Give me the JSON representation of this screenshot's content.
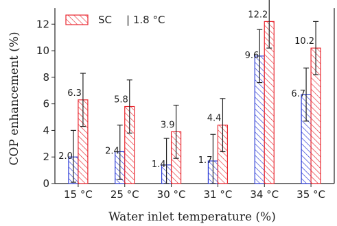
{
  "chart_data": {
    "type": "bar",
    "title": "",
    "xlabel": "Water inlet temperature (%)",
    "ylabel": "COP enhancement (%)",
    "categories": [
      "15 °C",
      "25 °C",
      "30 °C",
      "31 °C",
      "34 °C",
      "35 °C"
    ],
    "ylim": [
      0,
      13.2
    ],
    "yticks": [
      0,
      2,
      4,
      6,
      8,
      10,
      12
    ],
    "grid": false,
    "legend_position": "top-left",
    "series": [
      {
        "name": "",
        "color": "#2b3bd6",
        "hatch": "diagonal",
        "values": [
          2.0,
          2.4,
          1.4,
          1.7,
          9.6,
          6.7
        ],
        "labels": [
          "2.0",
          "2.4",
          "1.4",
          "1.7",
          "9.6",
          "6.7"
        ],
        "err_low": [
          0.1,
          0.3,
          0.0,
          0.0,
          7.6,
          4.7
        ],
        "err_high": [
          4.0,
          4.4,
          3.4,
          3.7,
          11.6,
          8.7
        ]
      },
      {
        "name": "SC",
        "color": "#e8262e",
        "hatch": "diagonal",
        "values": [
          6.3,
          5.8,
          3.9,
          4.4,
          12.2,
          10.2
        ],
        "labels": [
          "6.3",
          "5.8",
          "3.9",
          "4.4",
          "12.2",
          "10.2"
        ],
        "err_low": [
          4.3,
          3.8,
          1.9,
          2.4,
          10.2,
          8.2
        ],
        "err_high": [
          8.3,
          7.8,
          5.9,
          6.4,
          14.2,
          12.2
        ]
      }
    ],
    "legend": {
      "entries": [
        {
          "label": "SC",
          "color": "#e8262e"
        },
        {
          "label": "| 1.8 °C",
          "color": ""
        }
      ]
    }
  }
}
